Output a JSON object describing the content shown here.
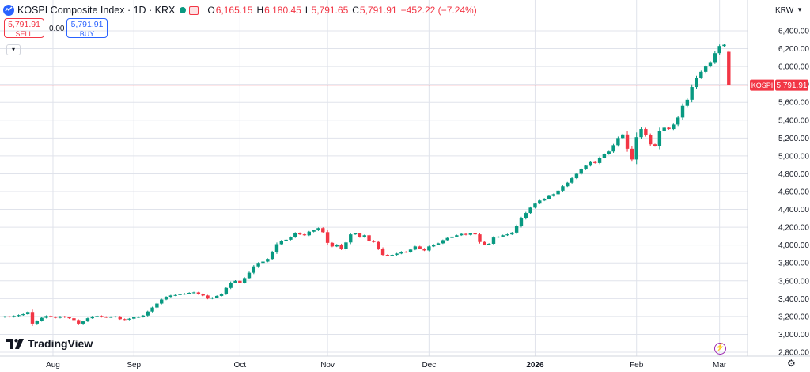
{
  "header": {
    "title": "KOSPI Composite Index · 1D · KRX",
    "open_key": "O",
    "open": "6,165.15",
    "high_key": "H",
    "high": "6,180.45",
    "low_key": "L",
    "low": "5,791.65",
    "close_key": "C",
    "close": "5,791.91",
    "change": "−452.22 (−7.24%)"
  },
  "trade": {
    "sell_price": "5,791.91",
    "sell_label": "SELL",
    "spread": "0.00",
    "buy_price": "5,791.91",
    "buy_label": "BUY"
  },
  "currency": "KRW",
  "brand": "TradingView",
  "icons": [
    "tradingview-logo-icon",
    "chevron-down-icon",
    "lightning-icon",
    "gear-icon"
  ],
  "colors": {
    "up": "#089981",
    "down": "#f23645",
    "grid": "#e0e3eb",
    "price_line": "#f23645"
  },
  "chart_data": {
    "type": "candlestick",
    "title": "KOSPI Composite Index · 1D · KRX",
    "y_ticks": [
      "2,800.00",
      "3,000.00",
      "3,200.00",
      "3,400.00",
      "3,600.00",
      "3,800.00",
      "4,000.00",
      "4,200.00",
      "4,400.00",
      "4,600.00",
      "4,800.00",
      "5,000.00",
      "5,200.00",
      "5,400.00",
      "5,600.00",
      "5,800.00",
      "6,000.00",
      "6,200.00",
      "6,400.00"
    ],
    "y_range": [
      2800,
      6400
    ],
    "x_ticks": [
      {
        "label": "Aug",
        "index": 6,
        "bold": false
      },
      {
        "label": "Sep",
        "index": 28,
        "bold": false
      },
      {
        "label": "Oct",
        "index": 51,
        "bold": false
      },
      {
        "label": "Nov",
        "index": 70,
        "bold": false
      },
      {
        "label": "Dec",
        "index": 92,
        "bold": false
      },
      {
        "label": "2026",
        "index": 115,
        "bold": true
      },
      {
        "label": "Feb",
        "index": 137,
        "bold": false
      },
      {
        "label": "Mar",
        "index": 155,
        "bold": false
      }
    ],
    "last_price_label": "KOSPI",
    "last_price": 5791.91,
    "last_price_text": "5,791.91",
    "closes": [
      3200,
      3195,
      3205,
      3215,
      3225,
      3250,
      3120,
      3150,
      3185,
      3205,
      3195,
      3185,
      3200,
      3190,
      3180,
      3160,
      3120,
      3145,
      3180,
      3200,
      3205,
      3195,
      3190,
      3195,
      3200,
      3170,
      3165,
      3175,
      3190,
      3195,
      3210,
      3255,
      3300,
      3345,
      3390,
      3420,
      3435,
      3440,
      3450,
      3455,
      3465,
      3470,
      3450,
      3435,
      3400,
      3410,
      3430,
      3455,
      3520,
      3580,
      3600,
      3580,
      3630,
      3690,
      3760,
      3800,
      3815,
      3845,
      3920,
      4010,
      4050,
      4060,
      4090,
      4135,
      4120,
      4110,
      4150,
      4165,
      4190,
      4145,
      4025,
      3985,
      4005,
      3955,
      4030,
      4120,
      4130,
      4090,
      4110,
      4050,
      4035,
      3960,
      3890,
      3885,
      3890,
      3905,
      3925,
      3920,
      3950,
      3985,
      3960,
      3940,
      3985,
      4005,
      4020,
      4055,
      4080,
      4095,
      4110,
      4125,
      4115,
      4130,
      4120,
      4035,
      4005,
      4015,
      4085,
      4095,
      4110,
      4120,
      4140,
      4215,
      4300,
      4360,
      4420,
      4465,
      4500,
      4520,
      4550,
      4570,
      4610,
      4660,
      4700,
      4750,
      4800,
      4850,
      4890,
      4930,
      4920,
      4980,
      5020,
      5050,
      5120,
      5200,
      5240,
      5080,
      4960,
      5210,
      5300,
      5230,
      5130,
      5110,
      5280,
      5315,
      5300,
      5350,
      5430,
      5560,
      5630,
      5770,
      5875,
      5940,
      6000,
      6050,
      6150,
      6230,
      6244,
      5792
    ]
  }
}
